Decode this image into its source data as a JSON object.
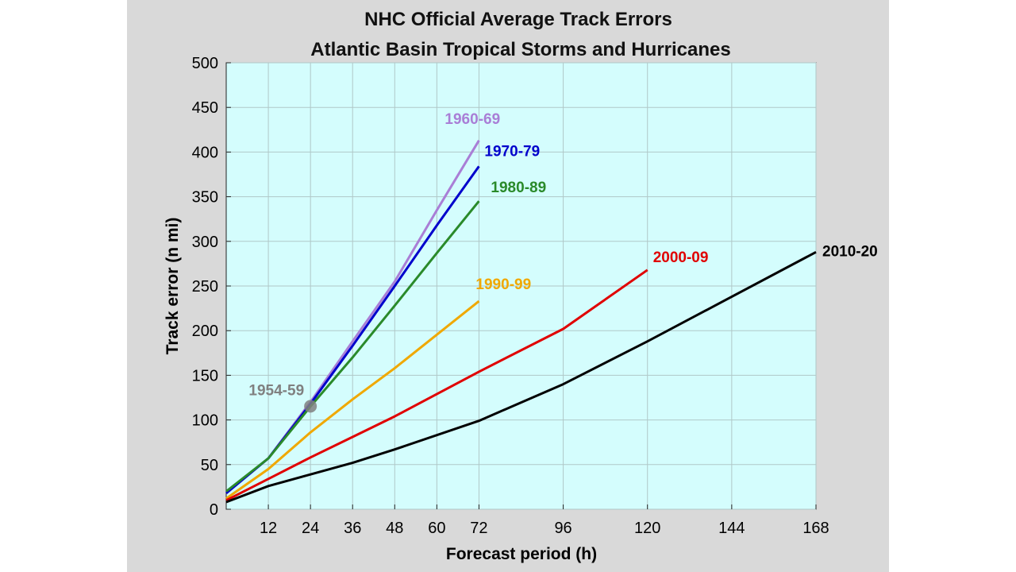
{
  "chart_data": {
    "type": "line",
    "title": "NHC Official Average Track Errors",
    "subtitle": "Atlantic Basin Tropical Storms and Hurricanes",
    "xlabel": "Forecast period (h)",
    "ylabel": "Track error (n mi)",
    "xlim": [
      0,
      168
    ],
    "ylim": [
      0,
      500
    ],
    "x_ticks": [
      12,
      24,
      36,
      48,
      60,
      72,
      96,
      120,
      144,
      168
    ],
    "y_ticks": [
      0,
      50,
      100,
      150,
      200,
      250,
      300,
      350,
      400,
      450,
      500
    ],
    "grid": true,
    "plot_background": "#d4fdfd",
    "series": [
      {
        "name": "1960-69",
        "color": "#a97ed6",
        "x": [
          0,
          12,
          24,
          36,
          48,
          60,
          72
        ],
        "y": [
          18,
          57,
          120,
          188,
          255,
          335,
          413
        ]
      },
      {
        "name": "1970-79",
        "color": "#0000cc",
        "x": [
          0,
          12,
          24,
          36,
          48,
          60,
          72
        ],
        "y": [
          18,
          57,
          118,
          183,
          250,
          318,
          384
        ]
      },
      {
        "name": "1980-89",
        "color": "#2a8a2a",
        "x": [
          0,
          12,
          24,
          36,
          48,
          60,
          72
        ],
        "y": [
          20,
          57,
          115,
          170,
          228,
          287,
          345
        ]
      },
      {
        "name": "1990-99",
        "color": "#f0a800",
        "x": [
          0,
          12,
          24,
          36,
          48,
          72
        ],
        "y": [
          12,
          45,
          86,
          123,
          158,
          233
        ]
      },
      {
        "name": "2000-09",
        "color": "#e00000",
        "x": [
          0,
          12,
          24,
          36,
          48,
          72,
          96,
          120
        ],
        "y": [
          10,
          34,
          58,
          81,
          104,
          154,
          202,
          268
        ]
      },
      {
        "name": "2010-20",
        "color": "#000000",
        "x": [
          0,
          12,
          24,
          36,
          48,
          72,
          96,
          120,
          168
        ],
        "y": [
          8,
          26,
          39,
          52,
          67,
          99,
          140,
          188,
          288
        ]
      }
    ],
    "points": [
      {
        "name": "1954-59",
        "color": "#808080",
        "x": 24,
        "y": 118
      }
    ]
  }
}
